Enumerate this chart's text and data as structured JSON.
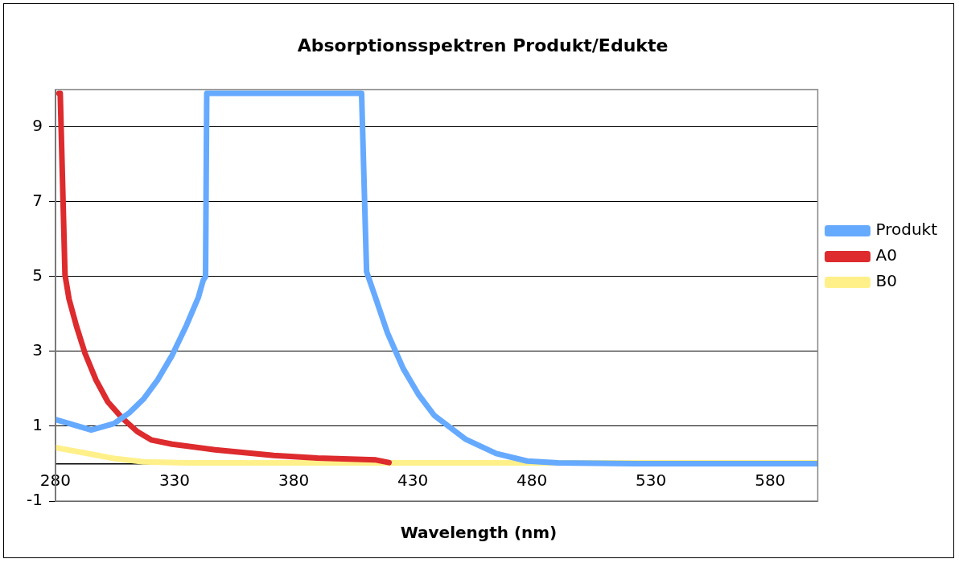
{
  "chart_data": {
    "type": "line",
    "title": "Absorptionsspektren Produkt/Edukte",
    "xlabel": "Wavelength (nm)",
    "xlim": [
      280,
      600
    ],
    "xticks": [
      280,
      330,
      380,
      430,
      480,
      530,
      580
    ],
    "ylim": [
      -1,
      10
    ],
    "yticks": [
      -1,
      1,
      3,
      5,
      7,
      9
    ],
    "grid": "y",
    "legend": "right",
    "marker": "none",
    "line_style": "solid",
    "series": [
      {
        "name": "Produkt",
        "color": "#66aaff",
        "x": [
          280,
          295,
          304.6,
          311,
          317,
          323,
          329,
          335,
          340,
          342,
          343,
          343.5,
          408.5,
          410.6,
          414,
          419.4,
          426,
          432.5,
          439,
          452,
          465,
          478,
          491,
          524,
          600
        ],
        "values": [
          1.18,
          0.9,
          1.07,
          1.36,
          1.73,
          2.25,
          2.9,
          3.7,
          4.45,
          4.9,
          5.0,
          9.9,
          9.9,
          5.13,
          4.5,
          3.49,
          2.54,
          1.84,
          1.29,
          0.66,
          0.27,
          0.07,
          0.02,
          0,
          0
        ]
      },
      {
        "name": "A0",
        "color": "#dd2b2e",
        "x": [
          281.5,
          282,
          284,
          285.7,
          288.8,
          292.4,
          297,
          302,
          308,
          314.3,
          320.4,
          329,
          347,
          371.6,
          390,
          414.5,
          420
        ],
        "values": [
          9.9,
          9.9,
          5.05,
          4.4,
          3.68,
          2.95,
          2.24,
          1.65,
          1.22,
          0.86,
          0.63,
          0.52,
          0.37,
          0.22,
          0.15,
          0.1,
          0.03
        ]
      },
      {
        "name": "B0",
        "color": "#fff08a",
        "x": [
          280,
          292,
          304.6,
          317,
          335,
          600
        ],
        "values": [
          0.43,
          0.29,
          0.14,
          0.05,
          0.02,
          0.02
        ]
      }
    ]
  }
}
